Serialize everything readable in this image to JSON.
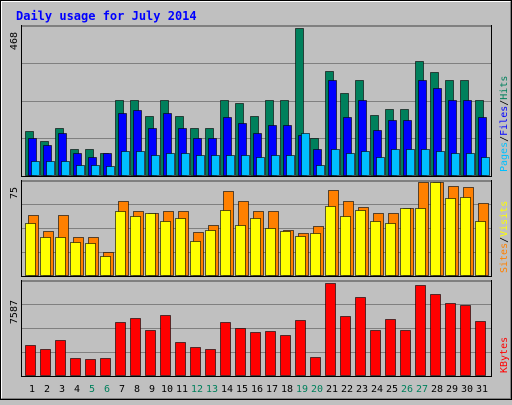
{
  "chart_data": {
    "type": "bar",
    "title": "Daily usage for July 2014",
    "colors": {
      "background": "#C0C0C0",
      "title": "#0000FF",
      "hits": "#00805C",
      "files": "#0000FF",
      "pages": "#00C0FF",
      "visits": "#FFFF00",
      "sites": "#FF8000",
      "kbytes": "#FF0000",
      "weekend_label": "#00805C"
    },
    "categories": [
      "1",
      "2",
      "3",
      "4",
      "5",
      "6",
      "7",
      "8",
      "9",
      "10",
      "11",
      "12",
      "13",
      "14",
      "15",
      "16",
      "17",
      "18",
      "19",
      "20",
      "21",
      "22",
      "23",
      "24",
      "25",
      "26",
      "27",
      "28",
      "29",
      "30",
      "31"
    ],
    "weekend_days": [
      "5",
      "6",
      "12",
      "13",
      "19",
      "20",
      "26",
      "27"
    ],
    "panels": [
      {
        "id": "hits",
        "max_label": "468",
        "ylim": [
          0,
          468
        ],
        "legend": [
          {
            "text": "Pages",
            "color": "#00C0FF"
          },
          {
            "text": "/",
            "color": "#000000"
          },
          {
            "text": "Files",
            "color": "#0000FF"
          },
          {
            "text": "/",
            "color": "#000000"
          },
          {
            "text": "Hits",
            "color": "#00805C"
          }
        ],
        "series": [
          {
            "name": "Hits",
            "values": [
              142,
              110,
              152,
              84,
              84,
              72,
              240,
              240,
              188,
              240,
              188,
              152,
              152,
              240,
              230,
              188,
              240,
              240,
              465,
              120,
              330,
              260,
              300,
              193,
              210,
              210,
              360,
              326,
              300,
              300,
              240
            ]
          },
          {
            "name": "Files",
            "values": [
              120,
              96,
              134,
              72,
              60,
              72,
              199,
              206,
              152,
              199,
              152,
              120,
              120,
              186,
              166,
              134,
              161,
              161,
              128,
              84,
              300,
              186,
              240,
              146,
              176,
              176,
              300,
              276,
              240,
              240,
              186
            ]
          },
          {
            "name": "Pages",
            "values": [
              48,
              48,
              48,
              36,
              36,
              30,
              78,
              78,
              66,
              72,
              72,
              66,
              66,
              66,
              66,
              60,
              66,
              66,
              134,
              36,
              84,
              72,
              78,
              60,
              84,
              84,
              84,
              78,
              72,
              72,
              60
            ]
          }
        ]
      },
      {
        "id": "visits",
        "max_label": "75",
        "ylim": [
          0,
          75
        ],
        "legend": [
          {
            "text": "Sites",
            "color": "#FF8000"
          },
          {
            "text": "/",
            "color": "#000000"
          },
          {
            "text": "Visits",
            "color": "#FFFF00"
          }
        ],
        "series": [
          {
            "name": "Sites",
            "values": [
              49,
              36,
              49,
              31,
              31,
              19,
              60,
              52,
              50,
              52,
              52,
              35,
              41,
              68,
              60,
              52,
              52,
              37,
              34,
              40,
              69,
              60,
              55,
              50,
              50,
              54,
              75,
              75,
              72,
              71,
              58
            ]
          },
          {
            "name": "Visits",
            "values": [
              42,
              31,
              31,
              27,
              26,
              16,
              52,
              48,
              50,
              44,
              46,
              28,
              37,
              53,
              41,
              46,
              38,
              36,
              32,
              34,
              56,
              48,
              53,
              44,
              42,
              54,
              54,
              75,
              62,
              63,
              44
            ]
          }
        ]
      },
      {
        "id": "kbytes",
        "max_label": "7587",
        "ylim": [
          0,
          7587
        ],
        "legend": [
          {
            "text": "KBytes",
            "color": "#FF0000"
          }
        ],
        "series": [
          {
            "name": "KBytes",
            "values": [
              2480,
              2150,
              2930,
              1430,
              1350,
              1430,
              4350,
              4720,
              3680,
              4940,
              2780,
              2330,
              2180,
              4330,
              3880,
              3530,
              3610,
              3310,
              4560,
              1570,
              7500,
              4810,
              6380,
              3680,
              4630,
              3680,
              7350,
              6610,
              5930,
              5710,
              4430
            ]
          }
        ]
      }
    ]
  }
}
